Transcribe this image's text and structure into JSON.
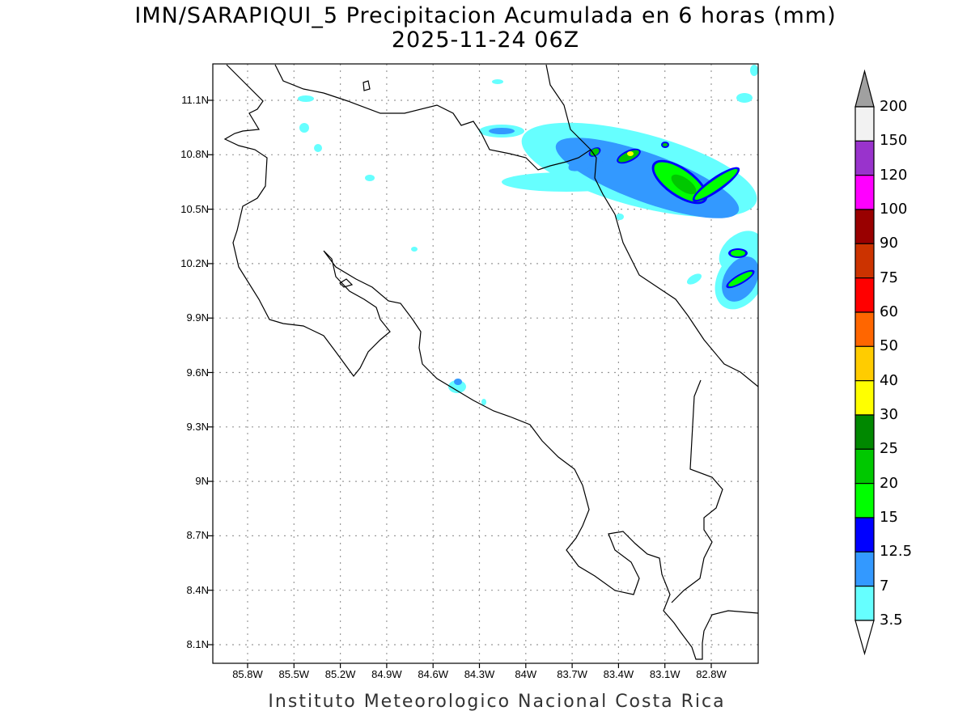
{
  "title": {
    "line1": "IMN/SARAPIQUI_5 Precipitacion Acumulada en 6 horas (mm)",
    "line2": "2025-11-24 06Z"
  },
  "footer": "Instituto Meteorologico Nacional Costa Rica",
  "lat_ticks": [
    "11.1N",
    "10.8N",
    "10.5N",
    "10.2N",
    "9.9N",
    "9.6N",
    "9.3N",
    "9N",
    "8.7N",
    "8.4N",
    "8.1N"
  ],
  "lon_ticks": [
    "85.8W",
    "85.5W",
    "85.2W",
    "84.9W",
    "84.6W",
    "84.3W",
    "84W",
    "83.7W",
    "83.4W",
    "83.1W",
    "82.8W"
  ],
  "colorbar": {
    "labels": [
      "200",
      "150",
      "120",
      "100",
      "90",
      "75",
      "60",
      "50",
      "40",
      "30",
      "25",
      "20",
      "15",
      "12.5",
      "7",
      "3.5"
    ],
    "colors_top_to_bottom": [
      "#f2f2f2",
      "#9933cc",
      "#ff00ff",
      "#990000",
      "#cc3300",
      "#ff0000",
      "#ff6600",
      "#ffcc00",
      "#ffff00",
      "#008800",
      "#00c800",
      "#00ff00",
      "#0000ff",
      "#3399ff",
      "#66ffff"
    ],
    "over_color": "#a0a0a0",
    "under_color": "#ffffff"
  }
}
